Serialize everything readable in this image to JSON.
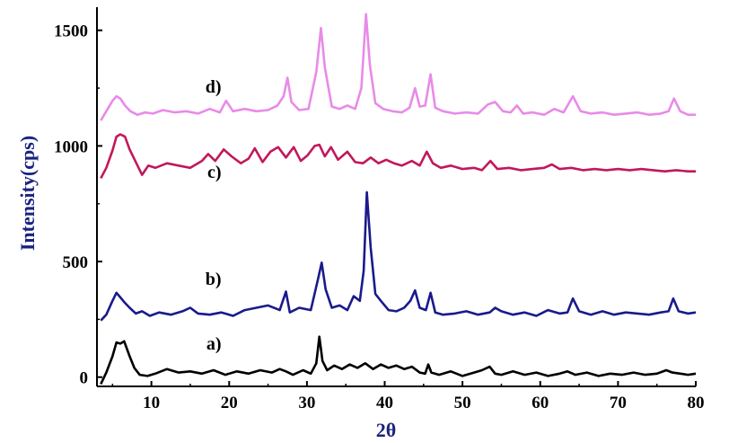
{
  "chart_data": {
    "type": "line",
    "xlabel": "2θ",
    "ylabel": "Intensity(cps)",
    "xlim": [
      3,
      80
    ],
    "ylim": [
      -40,
      1600
    ],
    "xticks": [
      10,
      20,
      30,
      40,
      50,
      60,
      70,
      80
    ],
    "yticks": [
      0,
      500,
      1000,
      1500
    ],
    "grid": false,
    "legend": "inline-labels",
    "axis_color": "#000000",
    "ylabel_color": "#1a237e",
    "xlabel_color": "#1a237e",
    "series": [
      {
        "name": "a)",
        "color": "#000000",
        "label_at": [
          19,
          120
        ],
        "x": [
          3.5,
          4.2,
          5.0,
          5.5,
          6.0,
          6.5,
          7.2,
          7.8,
          8.5,
          9.5,
          10.5,
          12,
          13.5,
          15,
          16.5,
          18,
          19.5,
          21,
          22.5,
          24,
          25.5,
          26.5,
          27.3,
          28.2,
          29.5,
          30.5,
          31.2,
          31.6,
          32.0,
          32.6,
          33.5,
          34.5,
          35.5,
          36.5,
          37.5,
          38.5,
          39.5,
          40.5,
          41.5,
          42.5,
          43.5,
          44.5,
          45.2,
          45.6,
          46.0,
          47,
          48.5,
          50,
          51.5,
          52.5,
          53.5,
          54.2,
          55,
          56.5,
          58,
          59.5,
          61,
          62.5,
          63.5,
          64.5,
          66,
          67.5,
          69,
          70.5,
          72,
          73.5,
          75,
          76.2,
          77,
          78,
          79,
          80
        ],
        "y": [
          -30,
          20,
          90,
          150,
          145,
          155,
          90,
          40,
          10,
          5,
          15,
          35,
          20,
          25,
          15,
          30,
          10,
          25,
          15,
          30,
          20,
          35,
          25,
          10,
          30,
          15,
          60,
          175,
          70,
          30,
          50,
          35,
          55,
          40,
          60,
          35,
          55,
          40,
          50,
          35,
          45,
          20,
          15,
          55,
          20,
          10,
          25,
          5,
          20,
          30,
          45,
          15,
          10,
          25,
          10,
          20,
          5,
          15,
          25,
          10,
          20,
          5,
          15,
          10,
          20,
          10,
          15,
          30,
          20,
          15,
          10,
          15
        ]
      },
      {
        "name": "b)",
        "color": "#1a1a8c",
        "label_at": [
          19,
          400
        ],
        "x": [
          3.5,
          4.2,
          5.0,
          5.5,
          6.0,
          6.5,
          7.2,
          8.0,
          8.8,
          9.8,
          11,
          12.5,
          14,
          15,
          16,
          17.5,
          19,
          20.5,
          22,
          23.5,
          25,
          26.5,
          27.3,
          27.8,
          29,
          30.5,
          31.4,
          31.9,
          32.4,
          33.2,
          34.2,
          35.2,
          36.0,
          36.8,
          37.3,
          37.7,
          38.2,
          38.8,
          39.5,
          40.5,
          41.5,
          42.5,
          43.3,
          43.9,
          44.5,
          45.3,
          45.9,
          46.5,
          47.5,
          49,
          50.5,
          52,
          53.5,
          54.2,
          55,
          56.5,
          58,
          59.5,
          61,
          62.5,
          63.5,
          64.2,
          65,
          66.5,
          68,
          69.5,
          71,
          72.5,
          74,
          75.5,
          76.5,
          77.1,
          77.8,
          79,
          80
        ],
        "y": [
          245,
          270,
          330,
          365,
          345,
          325,
          300,
          275,
          285,
          265,
          280,
          270,
          285,
          300,
          275,
          270,
          280,
          265,
          290,
          300,
          310,
          290,
          370,
          280,
          300,
          290,
          420,
          495,
          380,
          300,
          310,
          290,
          350,
          330,
          460,
          800,
          560,
          360,
          330,
          290,
          285,
          300,
          330,
          375,
          300,
          290,
          365,
          280,
          270,
          275,
          285,
          270,
          280,
          300,
          285,
          270,
          280,
          265,
          290,
          275,
          280,
          340,
          285,
          270,
          285,
          270,
          280,
          275,
          270,
          280,
          285,
          340,
          285,
          275,
          280
        ]
      },
      {
        "name": "c)",
        "color": "#c2185b",
        "label_at": [
          19,
          862
        ],
        "x": [
          3.5,
          4.2,
          5.0,
          5.5,
          6.0,
          6.6,
          7.2,
          8.0,
          8.8,
          9.6,
          10.5,
          12,
          13.5,
          15,
          16.5,
          17.3,
          18.2,
          19.3,
          20.3,
          21.5,
          22.5,
          23.3,
          24.3,
          25.3,
          26.3,
          27.3,
          28.3,
          29.2,
          30.1,
          31.0,
          31.6,
          32.3,
          33.1,
          34.0,
          35.2,
          36.2,
          37.2,
          38.2,
          39.2,
          40.2,
          41.2,
          42.2,
          43.5,
          44.5,
          45.4,
          46.2,
          47.2,
          48.5,
          50,
          51.5,
          52.5,
          53.6,
          54.5,
          56,
          57.5,
          59,
          60.5,
          61.5,
          62.5,
          64,
          65.5,
          67,
          68.5,
          70,
          71.5,
          73,
          74.5,
          76,
          77.5,
          79,
          80
        ],
        "y": [
          860,
          905,
          980,
          1040,
          1050,
          1040,
          985,
          930,
          875,
          915,
          905,
          925,
          915,
          905,
          935,
          965,
          935,
          985,
          955,
          925,
          945,
          990,
          930,
          975,
          995,
          950,
          995,
          935,
          960,
          1000,
          1005,
          955,
          995,
          940,
          975,
          930,
          925,
          950,
          925,
          940,
          925,
          915,
          935,
          915,
          975,
          925,
          905,
          915,
          900,
          905,
          895,
          935,
          900,
          905,
          895,
          900,
          905,
          920,
          900,
          905,
          895,
          900,
          895,
          900,
          895,
          900,
          895,
          890,
          895,
          890,
          890
        ]
      },
      {
        "name": "d)",
        "color": "#e88be8",
        "label_at": [
          19,
          1230
        ],
        "x": [
          3.5,
          4.2,
          5.0,
          5.5,
          6.0,
          6.6,
          7.3,
          8.2,
          9.2,
          10.2,
          11.5,
          13,
          14.5,
          16,
          17.5,
          18.8,
          19.6,
          20.5,
          22,
          23.5,
          25,
          26.2,
          27.0,
          27.5,
          28.0,
          29,
          30.2,
          31.2,
          31.8,
          32.3,
          33.2,
          34.2,
          35.2,
          36.2,
          37.0,
          37.6,
          38.1,
          38.8,
          39.8,
          41,
          42.2,
          43.2,
          43.9,
          44.5,
          45.2,
          45.9,
          46.5,
          47.5,
          49,
          50.5,
          52,
          53.3,
          54.2,
          55.2,
          56.2,
          57.0,
          57.8,
          59,
          60.5,
          61.8,
          63,
          64.2,
          65.2,
          66.5,
          68,
          69.5,
          71,
          72.5,
          74,
          75.5,
          76.5,
          77.2,
          78,
          79,
          80
        ],
        "y": [
          1110,
          1150,
          1195,
          1215,
          1205,
          1175,
          1150,
          1135,
          1145,
          1140,
          1155,
          1145,
          1150,
          1140,
          1160,
          1145,
          1195,
          1150,
          1160,
          1150,
          1155,
          1175,
          1215,
          1295,
          1190,
          1155,
          1160,
          1320,
          1510,
          1340,
          1170,
          1160,
          1175,
          1160,
          1250,
          1570,
          1350,
          1185,
          1160,
          1150,
          1145,
          1165,
          1250,
          1170,
          1175,
          1310,
          1165,
          1150,
          1140,
          1145,
          1140,
          1180,
          1190,
          1150,
          1145,
          1175,
          1140,
          1145,
          1135,
          1160,
          1145,
          1215,
          1150,
          1140,
          1145,
          1135,
          1140,
          1145,
          1135,
          1140,
          1150,
          1205,
          1150,
          1135,
          1135
        ]
      }
    ]
  }
}
